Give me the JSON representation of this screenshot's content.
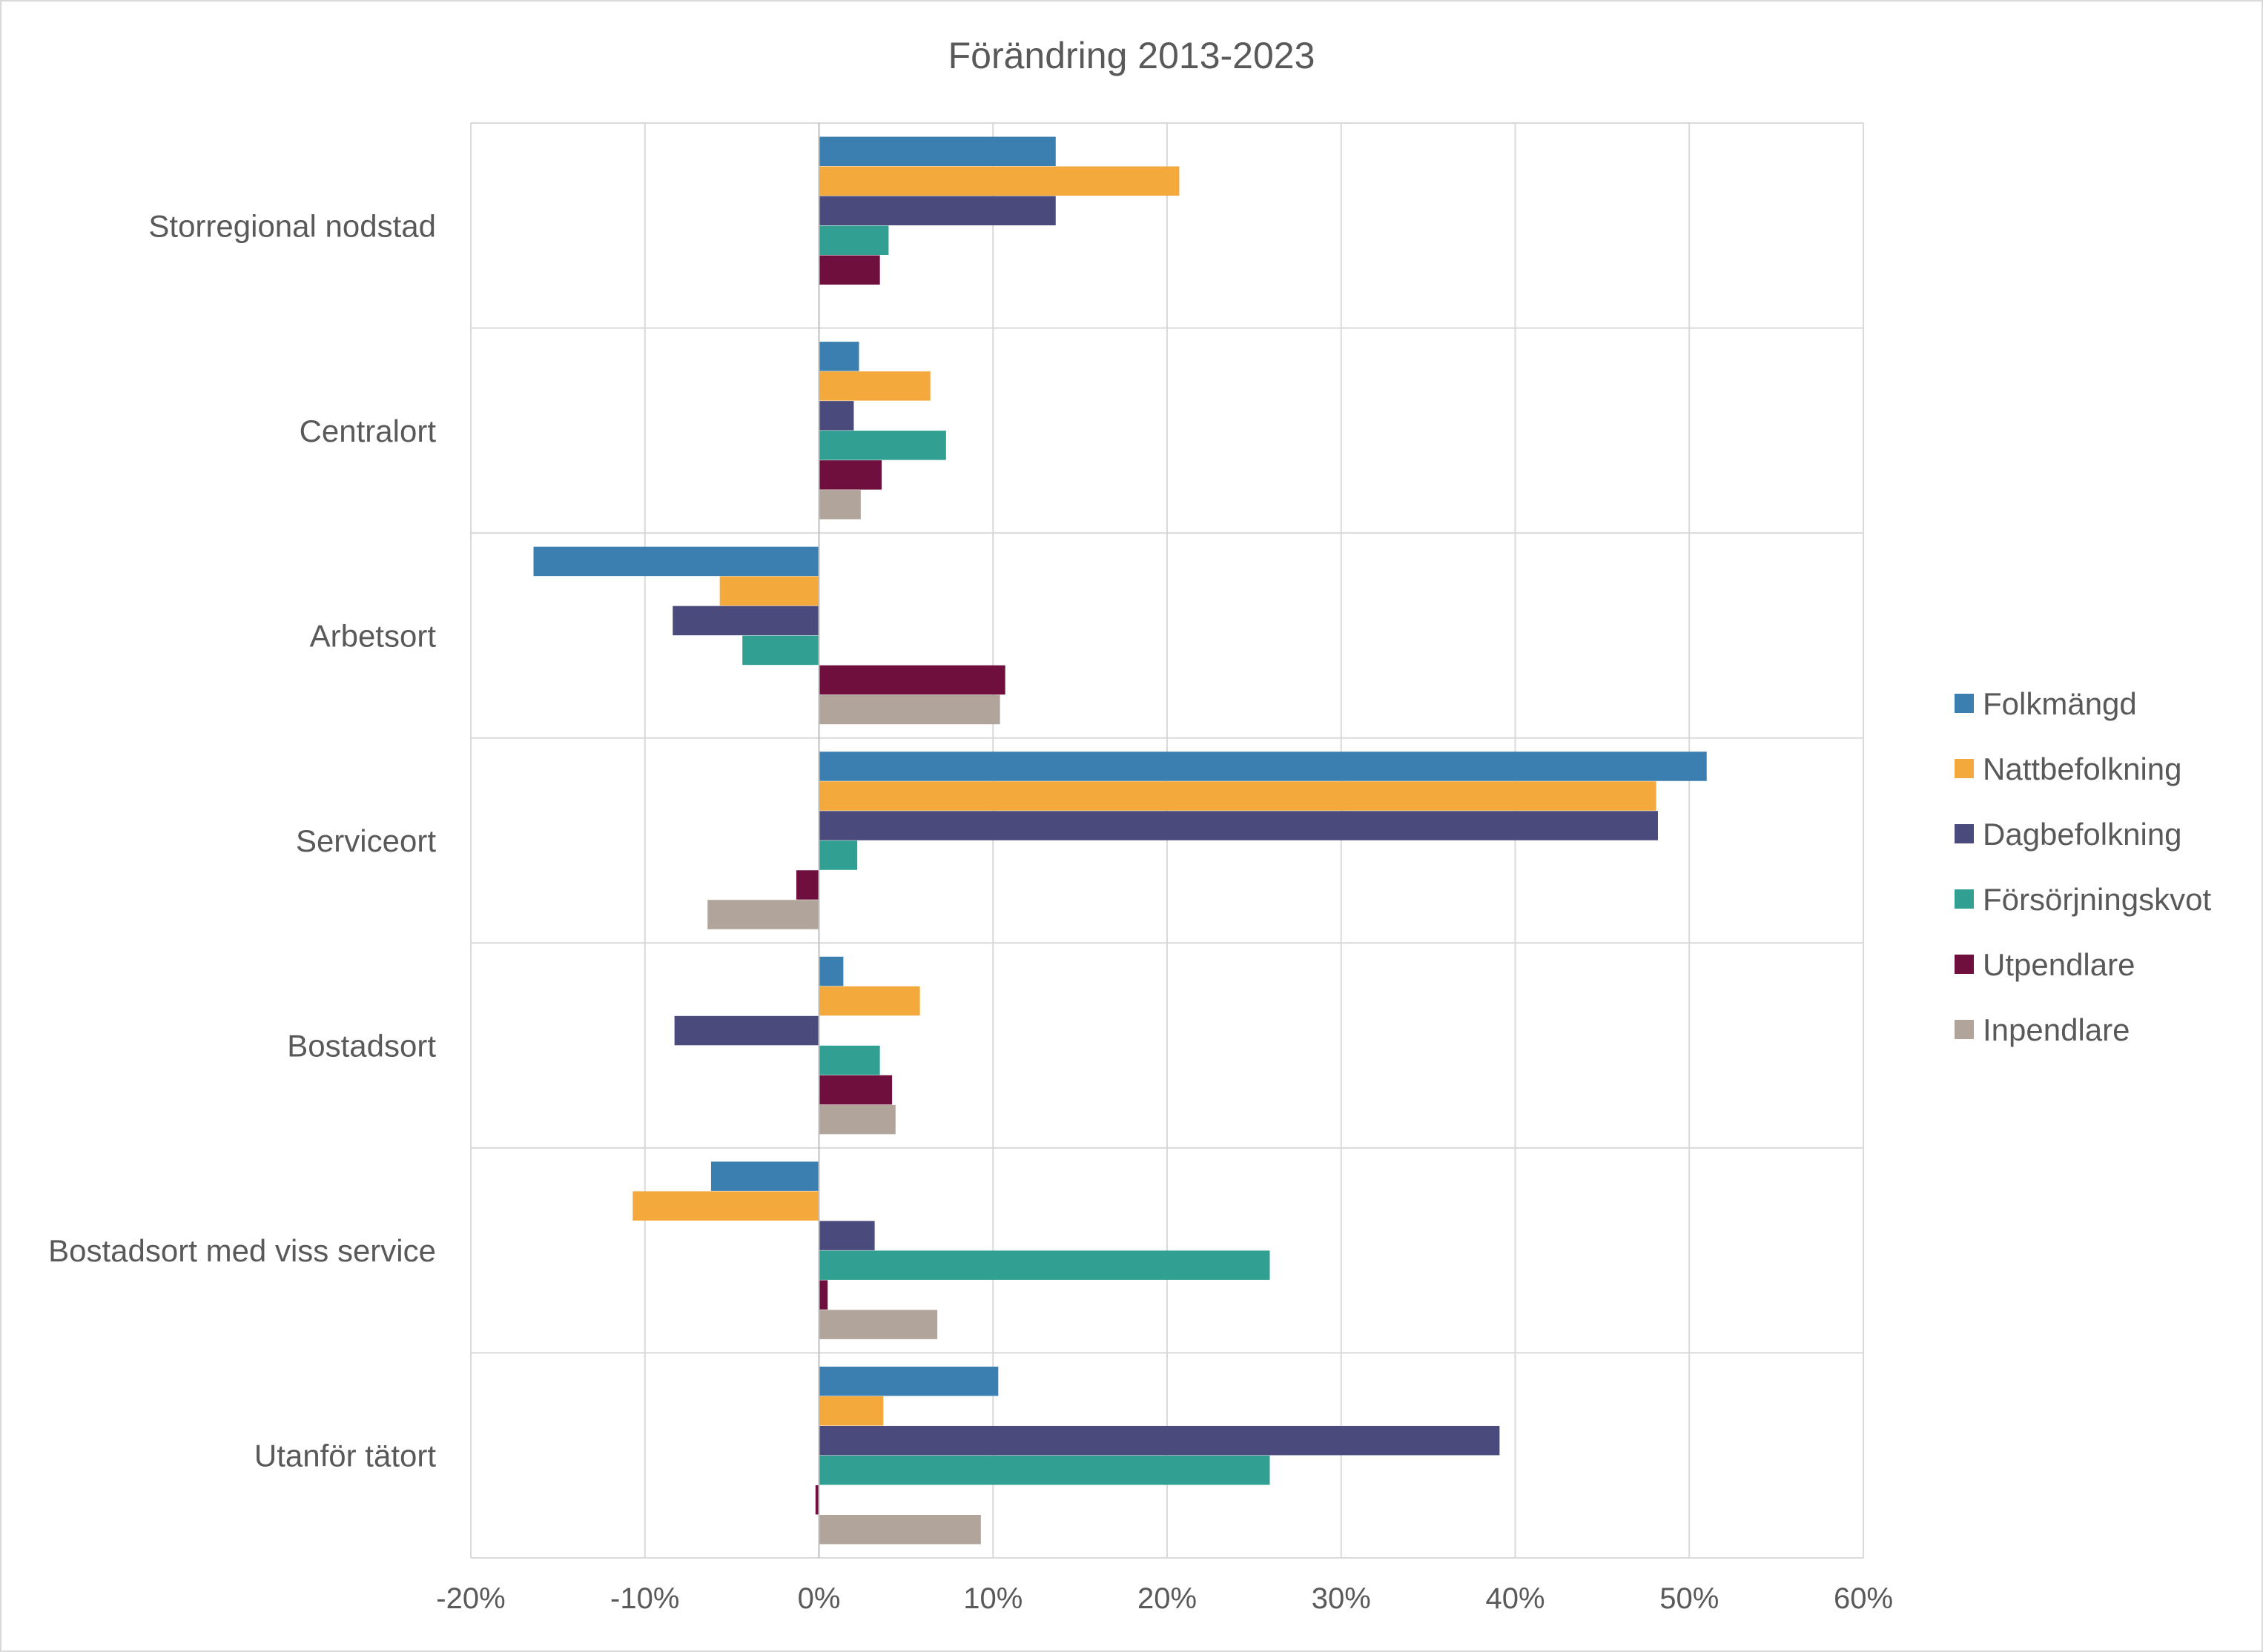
{
  "chart_data": {
    "type": "bar",
    "orientation": "horizontal",
    "title": "Förändring 2013-2023",
    "xlabel": "",
    "ylabel": "",
    "xlim": [
      -20,
      60
    ],
    "x_ticks": [
      -20,
      -10,
      0,
      10,
      20,
      30,
      40,
      50,
      60
    ],
    "x_tick_labels": [
      "-20%",
      "-10%",
      "0%",
      "10%",
      "20%",
      "30%",
      "40%",
      "50%",
      "60%"
    ],
    "grid": true,
    "legend_position": "right",
    "categories": [
      "Storregional nodstad",
      "Centralort",
      "Arbetsort",
      "Serviceort",
      "Bostadsort",
      "Bostadsort med viss service",
      "Utanför tätort"
    ],
    "series": [
      {
        "name": "Folkmängd",
        "color": "#3a7fb0",
        "values": [
          13.6,
          2.3,
          -16.4,
          51.0,
          1.4,
          -6.2,
          10.3
        ]
      },
      {
        "name": "Nattbefolkning",
        "color": "#f4a93c",
        "values": [
          20.7,
          6.4,
          -5.7,
          48.1,
          5.8,
          -10.7,
          3.7
        ]
      },
      {
        "name": "Dagbefolkning",
        "color": "#4b4a7d",
        "values": [
          13.6,
          2.0,
          -8.4,
          48.2,
          -8.3,
          3.2,
          39.1
        ]
      },
      {
        "name": "Försörjningskvot",
        "color": "#319f92",
        "values": [
          4.0,
          7.3,
          -4.4,
          2.2,
          3.5,
          25.9,
          25.9
        ]
      },
      {
        "name": "Utpendlare",
        "color": "#6e0f3d",
        "values": [
          3.5,
          3.6,
          10.7,
          -1.3,
          4.2,
          0.5,
          -0.2
        ]
      },
      {
        "name": "Inpendlare",
        "color": "#b1a49b",
        "values": [
          0,
          2.4,
          10.4,
          -6.4,
          4.4,
          6.8,
          9.3
        ]
      }
    ]
  }
}
